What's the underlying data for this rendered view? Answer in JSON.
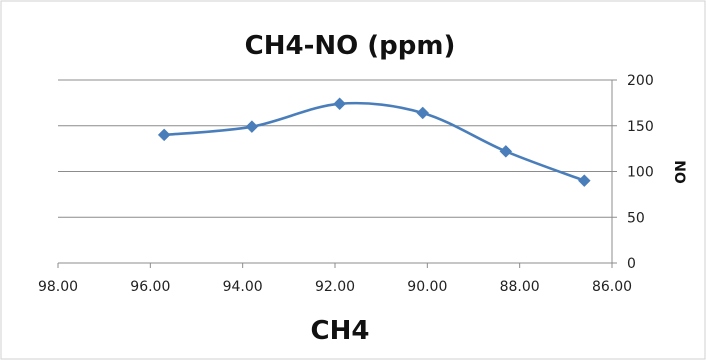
{
  "chart_data": {
    "type": "line",
    "title": "CH4-NO (ppm)",
    "xlabel": "CH4",
    "ylabel": "NO",
    "x_reversed": true,
    "xlim": [
      86,
      98
    ],
    "ylim": [
      0,
      200
    ],
    "x_ticks": [
      "98.00",
      "96.00",
      "94.00",
      "92.00",
      "90.00",
      "88.00",
      "86.00"
    ],
    "y_ticks": [
      "0",
      "50",
      "100",
      "150",
      "200"
    ],
    "y_axis_side": "right",
    "grid": "horizontal",
    "series": [
      {
        "color": "#4a7ebb",
        "marker": "diamond",
        "smooth": true,
        "x": [
          95.7,
          93.8,
          91.9,
          90.1,
          88.3,
          86.6
        ],
        "y": [
          140,
          149,
          174,
          164,
          122,
          90
        ]
      }
    ]
  }
}
